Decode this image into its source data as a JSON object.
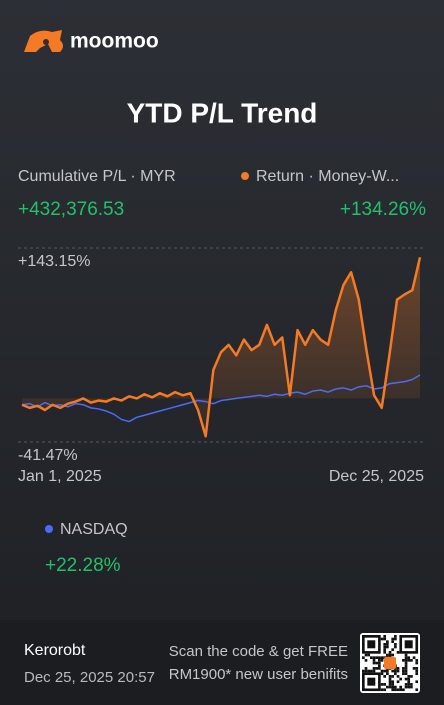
{
  "header": {
    "logo": "moomoo"
  },
  "chart_data": {
    "type": "line",
    "title": "YTD P/L Trend",
    "metric_label": "Cumulative P/L · MYR",
    "metric_value": "+432,376.53",
    "categories": [
      "Jan 1, 2025",
      null,
      null,
      null,
      null,
      null,
      null,
      null,
      null,
      null,
      null,
      null,
      null,
      null,
      null,
      null,
      null,
      null,
      null,
      null,
      null,
      null,
      null,
      null,
      null,
      null,
      null,
      null,
      null,
      null,
      null,
      null,
      null,
      null,
      null,
      null,
      null,
      null,
      null,
      null,
      null,
      null,
      null,
      null,
      null,
      null,
      null,
      null,
      null,
      null,
      null,
      null,
      "Dec 25, 2025"
    ],
    "ylim": [
      -41.47,
      143.15
    ],
    "yticks": [
      {
        "value": 143.15,
        "label": "+143.15%"
      },
      {
        "value": -41.47,
        "label": "-41.47%"
      }
    ],
    "grid": true,
    "series": [
      {
        "name": "Return · Money-W...",
        "total_label": "+134.26%",
        "color": "#f47a25",
        "values": [
          -6,
          -9,
          -7,
          -11,
          -6,
          -9,
          -5,
          -3,
          0,
          -4,
          -2,
          -3,
          0,
          -2,
          2,
          0,
          4,
          1,
          5,
          2,
          6,
          3,
          5,
          -11,
          -36,
          27,
          44,
          51,
          41,
          56,
          46,
          51,
          70,
          51,
          58,
          3,
          65,
          51,
          65,
          56,
          51,
          84,
          108,
          120,
          94,
          46,
          3,
          -9,
          41,
          94,
          99,
          103,
          134.26
        ]
      },
      {
        "name": "NASDAQ",
        "total_label": "+22.28%",
        "color": "#4a6cf7",
        "values": [
          -6,
          -5,
          -8,
          -4,
          -7,
          -6,
          -8,
          -5,
          -6,
          -9,
          -10,
          -12,
          -15,
          -20,
          -22,
          -18,
          -16,
          -14,
          -12,
          -10,
          -8,
          -6,
          -4,
          -2,
          -3,
          -5,
          -2,
          -1,
          0,
          1,
          2,
          3,
          2,
          4,
          3,
          5,
          6,
          4,
          7,
          8,
          6,
          9,
          10,
          8,
          11,
          12,
          9,
          10,
          14,
          15,
          16,
          18,
          22.28
        ]
      }
    ]
  },
  "footer": {
    "user": "Kerorobt",
    "timestamp": "Dec 25, 2025 20:57",
    "promo_line1": "Scan the code & get FREE",
    "promo_line2": "RM1900* new user benifits"
  }
}
